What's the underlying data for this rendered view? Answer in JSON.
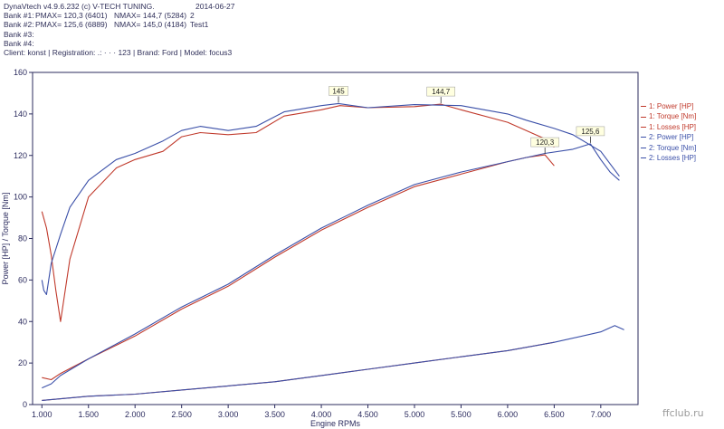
{
  "header": {
    "software": "DynaVtech v4.9.6.232 (c) V-TECH TUNING.",
    "date": "2014-06-27",
    "bank1": {
      "label": "Bank #1:",
      "pmax": "PMAX= 120,3 (6401)",
      "nmax": "NMAX= 144,7 (5284)",
      "extra": "2"
    },
    "bank2": {
      "label": "Bank #2:",
      "pmax": "PMAX= 125,6 (6889)",
      "nmax": "NMAX= 145,0 (4184)",
      "extra": "Test1"
    },
    "bank3": "Bank #3:",
    "bank4": "Bank #4:",
    "client_line": "Client: konst | Registration: .: ·  ·  ·  123 | Brand: Ford | Model: focus3"
  },
  "legend": [
    {
      "label": "1: Power [HP]",
      "color": "#c0392b"
    },
    {
      "label": "1: Torque [Nm]",
      "color": "#c0392b"
    },
    {
      "label": "1: Losses [HP]",
      "color": "#c0392b"
    },
    {
      "label": "2: Power [HP]",
      "color": "#3a4fa8"
    },
    {
      "label": "2: Torque [Nm]",
      "color": "#3a4fa8"
    },
    {
      "label": "2: Losses [HP]",
      "color": "#3a4fa8"
    }
  ],
  "watermark": "ffclub.ru",
  "chart_data": {
    "type": "line",
    "xlabel": "Engine RPMs",
    "ylabel": "Power [HP] / Torque [Nm]",
    "xlim": [
      900,
      7400
    ],
    "ylim": [
      0,
      160
    ],
    "xticks": [
      1000,
      1500,
      2000,
      2500,
      3000,
      3500,
      4000,
      4500,
      5000,
      5500,
      6000,
      6500,
      7000
    ],
    "xtick_labels": [
      "1.000",
      "1.500",
      "2.000",
      "2.500",
      "3.000",
      "3.500",
      "4.000",
      "4.500",
      "5.000",
      "5.500",
      "6.000",
      "6.500",
      "7.000"
    ],
    "yticks": [
      0,
      20,
      40,
      60,
      80,
      100,
      120,
      140,
      160
    ],
    "grid": false,
    "series": [
      {
        "name": "1: Power [HP]",
        "color": "#c0392b",
        "x": [
          1000,
          1100,
          1200,
          1500,
          2000,
          2500,
          3000,
          3500,
          4000,
          4500,
          5000,
          5500,
          6000,
          6200,
          6401,
          6500
        ],
        "y": [
          13,
          12,
          15,
          22,
          33,
          46,
          57,
          71,
          84,
          95,
          105,
          111,
          117,
          119,
          120.3,
          115
        ]
      },
      {
        "name": "1: Torque [Nm]",
        "color": "#c0392b",
        "x": [
          1000,
          1050,
          1100,
          1150,
          1200,
          1300,
          1500,
          1800,
          2000,
          2300,
          2500,
          2700,
          3000,
          3300,
          3600,
          4000,
          4200,
          4500,
          5000,
          5284,
          5500,
          6000,
          6200,
          6400,
          6500
        ],
        "y": [
          93,
          85,
          72,
          55,
          40,
          70,
          100,
          114,
          118,
          122,
          129,
          131,
          130,
          131,
          139,
          142,
          144,
          143,
          143.5,
          144.7,
          142,
          136,
          132,
          128,
          124
        ]
      },
      {
        "name": "1: Losses [HP]",
        "color": "#c0392b",
        "x": [
          1000,
          1500,
          2000,
          2500,
          3000,
          3500,
          4000,
          4500,
          5000,
          5500,
          6000,
          6500
        ],
        "y": [
          2,
          4,
          5,
          7,
          9,
          11,
          14,
          17,
          20,
          23,
          26,
          30
        ]
      },
      {
        "name": "2: Power [HP]",
        "color": "#3a4fa8",
        "x": [
          1000,
          1100,
          1200,
          1500,
          2000,
          2500,
          3000,
          3500,
          4000,
          4500,
          5000,
          5500,
          6000,
          6400,
          6700,
          6889,
          7000,
          7100,
          7200
        ],
        "y": [
          8,
          10,
          14,
          22,
          34,
          47,
          58,
          72,
          85,
          96,
          106,
          112,
          117,
          121,
          123,
          125.6,
          118,
          112,
          108
        ]
      },
      {
        "name": "2: Torque [Nm]",
        "color": "#3a4fa8",
        "x": [
          1000,
          1020,
          1050,
          1100,
          1200,
          1300,
          1500,
          1800,
          2000,
          2300,
          2500,
          2700,
          3000,
          3300,
          3600,
          4000,
          4184,
          4500,
          5000,
          5500,
          6000,
          6200,
          6500,
          6700,
          7000,
          7100,
          7200
        ],
        "y": [
          60,
          55,
          53,
          68,
          82,
          95,
          108,
          118,
          121,
          127,
          132,
          134,
          132,
          134,
          141,
          144,
          145,
          143,
          144.5,
          144,
          140,
          137,
          133,
          130,
          122,
          116,
          110
        ]
      },
      {
        "name": "2: Losses [HP]",
        "color": "#3a4fa8",
        "x": [
          1000,
          1500,
          2000,
          2500,
          3000,
          3500,
          4000,
          4500,
          5000,
          5500,
          6000,
          6500,
          7000,
          7150,
          7250
        ],
        "y": [
          2,
          4,
          5,
          7,
          9,
          11,
          14,
          17,
          20,
          23,
          26,
          30,
          35,
          38,
          36
        ]
      }
    ],
    "annotations": [
      {
        "text": "145",
        "x": 4184,
        "y": 145
      },
      {
        "text": "144,7",
        "x": 5284,
        "y": 144.7
      },
      {
        "text": "120,3",
        "x": 6401,
        "y": 120.3
      },
      {
        "text": "125,6",
        "x": 6889,
        "y": 125.6
      }
    ]
  }
}
